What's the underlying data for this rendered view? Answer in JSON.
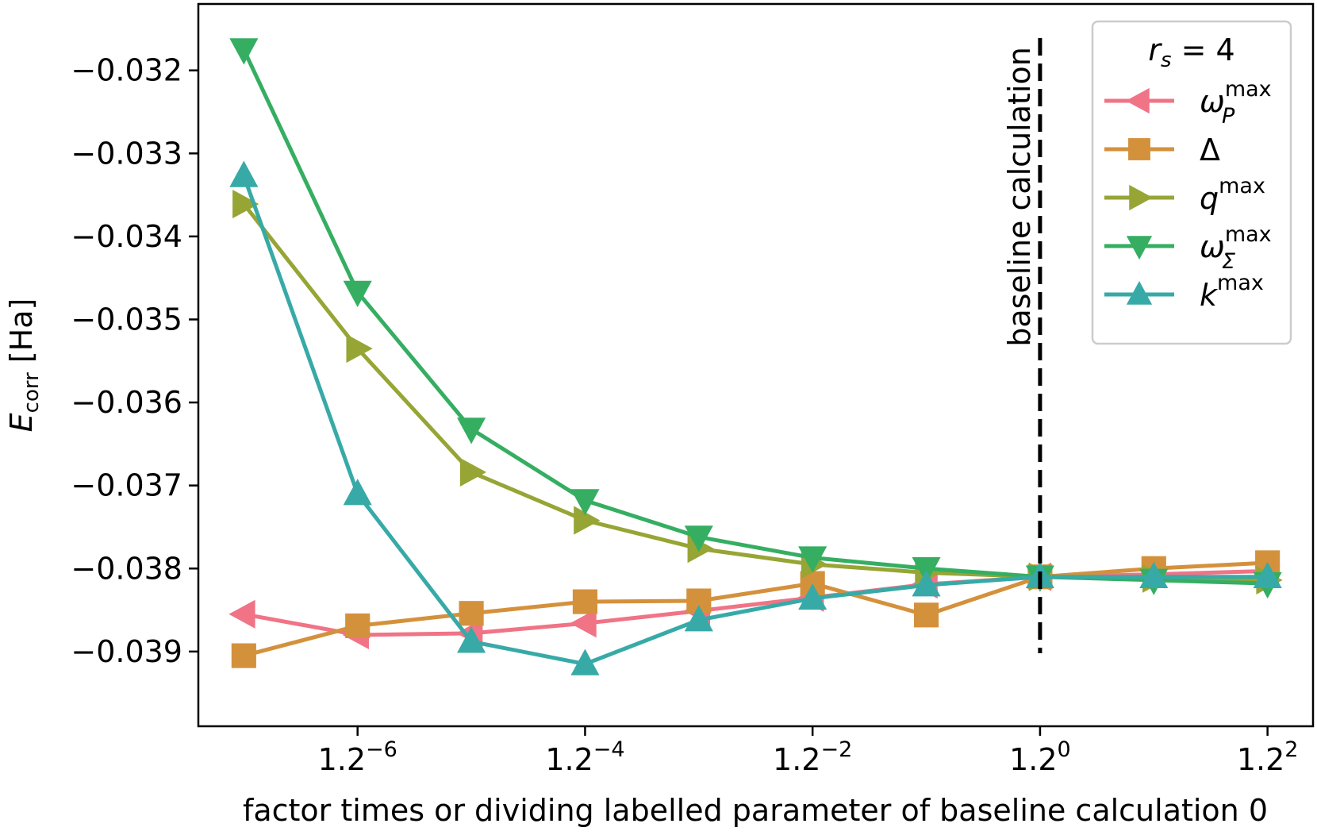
{
  "chart_data": {
    "type": "line",
    "title": "",
    "xlabel": "factor times or dividing labelled parameter of baseline calculation 0",
    "ylabel": {
      "symbol": "E",
      "sub": "corr",
      "unit": " [Ha]"
    },
    "x": [
      -7,
      -6,
      -5,
      -4,
      -3,
      -2,
      -1,
      0,
      1,
      2
    ],
    "xlim": [
      -7.4,
      2.4
    ],
    "ylim": [
      -0.0399,
      -0.0312
    ],
    "xticks": [
      {
        "value": -6,
        "base": "1.2",
        "exp": "−6"
      },
      {
        "value": -4,
        "base": "1.2",
        "exp": "−4"
      },
      {
        "value": -2,
        "base": "1.2",
        "exp": "−2"
      },
      {
        "value": 0,
        "base": "1.2",
        "exp": "0"
      },
      {
        "value": 2,
        "base": "1.2",
        "exp": "2"
      }
    ],
    "yticks": [
      {
        "value": -0.032,
        "label": "−0.032"
      },
      {
        "value": -0.033,
        "label": "−0.033"
      },
      {
        "value": -0.034,
        "label": "−0.034"
      },
      {
        "value": -0.035,
        "label": "−0.035"
      },
      {
        "value": -0.036,
        "label": "−0.036"
      },
      {
        "value": -0.037,
        "label": "−0.037"
      },
      {
        "value": -0.038,
        "label": "−0.038"
      },
      {
        "value": -0.039,
        "label": "−0.039"
      }
    ],
    "grid": false,
    "legend": {
      "placement": "top-right",
      "title": {
        "symbol": "r",
        "sub": "s",
        "rest": " = 4"
      }
    },
    "vline": {
      "x": 0,
      "label": "baseline calculation",
      "style": "dashed",
      "color": "#000000"
    },
    "series": [
      {
        "name": "ω_P^max",
        "label": {
          "main": "ω",
          "sub": "P",
          "sup": "max"
        },
        "color": "#f07386",
        "marker": "triangle-left",
        "values": [
          -0.03855,
          -0.0388,
          -0.03878,
          -0.03866,
          -0.03851,
          -0.03835,
          -0.03819,
          -0.0381,
          -0.03807,
          -0.03803
        ]
      },
      {
        "name": "Δ",
        "label": {
          "main": "Δ",
          "sub": "",
          "sup": ""
        },
        "color": "#d4913c",
        "marker": "square",
        "values": [
          -0.03905,
          -0.03869,
          -0.03854,
          -0.0384,
          -0.03839,
          -0.03818,
          -0.03856,
          -0.0381,
          -0.038,
          -0.03793
        ]
      },
      {
        "name": "q^max",
        "label": {
          "main": "q",
          "sub": "",
          "sup": "max"
        },
        "color": "#97a535",
        "marker": "triangle-right",
        "values": [
          -0.03361,
          -0.03535,
          -0.03684,
          -0.03742,
          -0.03776,
          -0.03795,
          -0.03805,
          -0.0381,
          -0.03812,
          -0.03814
        ]
      },
      {
        "name": "ω_Σ^max",
        "label": {
          "main": "ω",
          "sub": "Σ",
          "sup": "max"
        },
        "color": "#35ae62",
        "marker": "triangle-down",
        "values": [
          -0.03175,
          -0.03467,
          -0.03632,
          -0.03718,
          -0.03762,
          -0.03787,
          -0.038,
          -0.0381,
          -0.03814,
          -0.03818
        ]
      },
      {
        "name": "k^max",
        "label": {
          "main": "k",
          "sub": "",
          "sup": "max"
        },
        "color": "#37aaa7",
        "marker": "triangle-up",
        "values": [
          -0.03327,
          -0.0371,
          -0.03888,
          -0.03915,
          -0.03862,
          -0.03836,
          -0.0382,
          -0.0381,
          -0.0381,
          -0.0381
        ]
      }
    ]
  }
}
